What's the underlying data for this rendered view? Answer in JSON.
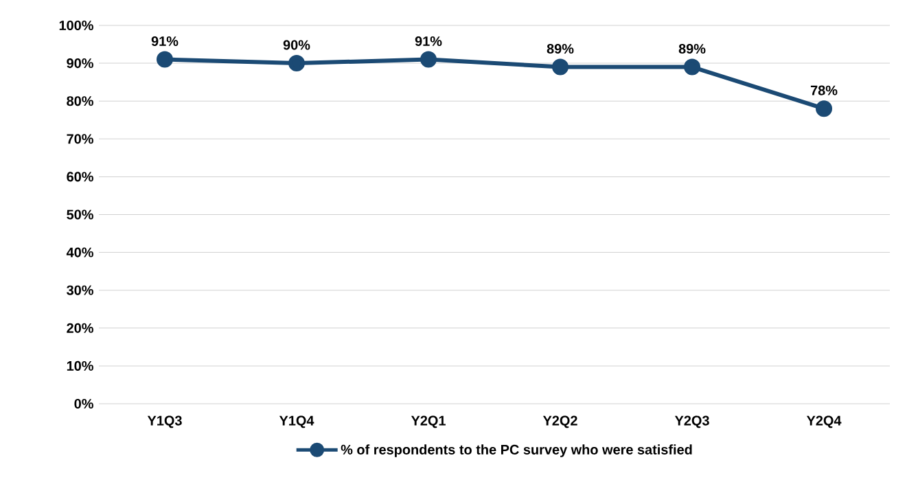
{
  "chart_data": {
    "type": "line",
    "categories": [
      "Y1Q3",
      "Y1Q4",
      "Y2Q1",
      "Y2Q2",
      "Y2Q3",
      "Y2Q4"
    ],
    "series": [
      {
        "name": "% of respondents to the PC survey who were satisfied",
        "color": "#1b4a74",
        "values": [
          91,
          90,
          91,
          89,
          89,
          78
        ],
        "value_labels": [
          "91%",
          "90%",
          "91%",
          "89%",
          "89%",
          "78%"
        ]
      }
    ],
    "ylim": [
      0,
      100
    ],
    "yticks": [
      {
        "value": 0,
        "label": "0%"
      },
      {
        "value": 10,
        "label": "10%"
      },
      {
        "value": 20,
        "label": "20%"
      },
      {
        "value": 30,
        "label": "30%"
      },
      {
        "value": 40,
        "label": "40%"
      },
      {
        "value": 50,
        "label": "50%"
      },
      {
        "value": 60,
        "label": "60%"
      },
      {
        "value": 70,
        "label": "70%"
      },
      {
        "value": 80,
        "label": "80%"
      },
      {
        "value": 90,
        "label": "90%"
      },
      {
        "value": 100,
        "label": "100%"
      }
    ],
    "grid": "y",
    "legend": "bottom",
    "marker": "circle",
    "line_style": "solid"
  }
}
